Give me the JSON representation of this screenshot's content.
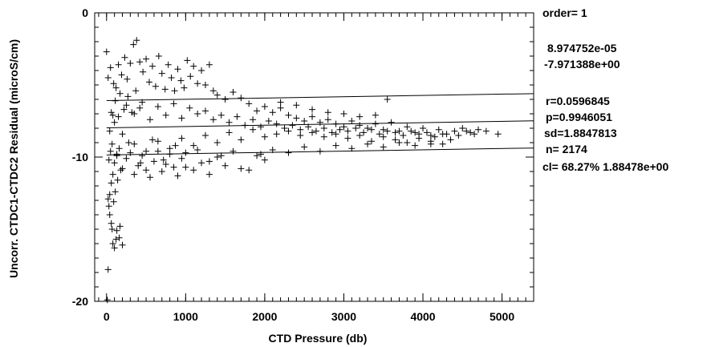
{
  "chart_data": {
    "type": "scatter",
    "title": "",
    "xlabel": "CTD Pressure (db)",
    "ylabel": "Uncorr. CTDC1-CTDC2 Residual (microS/cm)",
    "xlim": [
      -150,
      5400
    ],
    "ylim": [
      -20,
      0
    ],
    "x_ticks": [
      0,
      1000,
      2000,
      3000,
      4000,
      5000
    ],
    "y_ticks": [
      0,
      -10,
      -20
    ],
    "x_minor_step": 100,
    "y_minor_step": 1,
    "marker": "+",
    "grid": false,
    "fit": {
      "slope": 8.974752e-05,
      "intercept": -7.971388,
      "sd": 1.8847813,
      "confidence_band_offset": 1.88478
    },
    "points": [
      [
        0,
        -2.7
      ],
      [
        10,
        -19.9
      ],
      [
        20,
        -12.9
      ],
      [
        30,
        -13.4
      ],
      [
        40,
        -14.0
      ],
      [
        60,
        -14.6
      ],
      [
        70,
        -15.0
      ],
      [
        80,
        -16.0
      ],
      [
        100,
        -16.3
      ],
      [
        120,
        -15.7
      ],
      [
        130,
        -15.1
      ],
      [
        160,
        -15.6
      ],
      [
        170,
        -14.8
      ],
      [
        200,
        -16.1
      ],
      [
        20,
        -17.8
      ],
      [
        40,
        -12.6
      ],
      [
        60,
        -11.8
      ],
      [
        80,
        -11.2
      ],
      [
        90,
        -13.1
      ],
      [
        110,
        -12.4
      ],
      [
        140,
        -11.6
      ],
      [
        180,
        -10.9
      ],
      [
        30,
        -10.2
      ],
      [
        50,
        -9.6
      ],
      [
        70,
        -9.1
      ],
      [
        100,
        -10.4
      ],
      [
        130,
        -9.8
      ],
      [
        160,
        -9.4
      ],
      [
        200,
        -10.8
      ],
      [
        250,
        -10.1
      ],
      [
        300,
        -9.7
      ],
      [
        350,
        -11.2
      ],
      [
        400,
        -10.6
      ],
      [
        450,
        -9.9
      ],
      [
        500,
        -10.9
      ],
      [
        550,
        -11.4
      ],
      [
        600,
        -10.3
      ],
      [
        650,
        -9.6
      ],
      [
        700,
        -11.0
      ],
      [
        750,
        -10.5
      ],
      [
        800,
        -9.8
      ],
      [
        850,
        -10.7
      ],
      [
        900,
        -11.3
      ],
      [
        950,
        -10.1
      ],
      [
        1000,
        -9.7
      ],
      [
        1100,
        -10.9
      ],
      [
        1200,
        -10.4
      ],
      [
        1300,
        -11.2
      ],
      [
        1400,
        -10.0
      ],
      [
        1500,
        -10.6
      ],
      [
        1700,
        -10.8
      ],
      [
        1900,
        -9.9
      ],
      [
        2000,
        -10.2
      ],
      [
        20,
        -4.5
      ],
      [
        50,
        -3.8
      ],
      [
        90,
        -4.9
      ],
      [
        120,
        -5.2
      ],
      [
        150,
        -3.6
      ],
      [
        190,
        -4.3
      ],
      [
        230,
        -3.1
      ],
      [
        260,
        -4.6
      ],
      [
        300,
        -3.5
      ],
      [
        340,
        -2.2
      ],
      [
        380,
        -1.9
      ],
      [
        420,
        -3.4
      ],
      [
        460,
        -4.1
      ],
      [
        500,
        -3.2
      ],
      [
        540,
        -4.8
      ],
      [
        580,
        -3.7
      ],
      [
        620,
        -5.1
      ],
      [
        660,
        -3.0
      ],
      [
        700,
        -4.2
      ],
      [
        740,
        -5.3
      ],
      [
        780,
        -3.6
      ],
      [
        820,
        -4.5
      ],
      [
        860,
        -5.4
      ],
      [
        900,
        -3.9
      ],
      [
        940,
        -4.7
      ],
      [
        980,
        -5.2
      ],
      [
        1020,
        -3.3
      ],
      [
        1060,
        -4.4
      ],
      [
        1100,
        -3.7
      ],
      [
        1150,
        -4.9
      ],
      [
        1200,
        -4.0
      ],
      [
        1250,
        -5.0
      ],
      [
        1300,
        -3.6
      ],
      [
        1350,
        -5.4
      ],
      [
        1400,
        -5.7
      ],
      [
        1500,
        -6.0
      ],
      [
        1600,
        -5.5
      ],
      [
        1700,
        -5.9
      ],
      [
        1800,
        -6.3
      ],
      [
        1900,
        -6.8
      ],
      [
        2000,
        -6.5
      ],
      [
        2100,
        -6.9
      ],
      [
        2200,
        -6.6
      ],
      [
        2300,
        -7.1
      ],
      [
        2400,
        -7.3
      ],
      [
        2500,
        -7.5
      ],
      [
        2600,
        -7.2
      ],
      [
        2700,
        -7.6
      ],
      [
        2800,
        -7.4
      ],
      [
        2900,
        -7.7
      ],
      [
        3000,
        -7.9
      ],
      [
        3100,
        -7.5
      ],
      [
        3200,
        -7.8
      ],
      [
        3300,
        -8.0
      ],
      [
        3400,
        -7.7
      ],
      [
        3500,
        -8.1
      ],
      [
        3550,
        -6.0
      ],
      [
        3600,
        -7.6
      ],
      [
        3700,
        -8.2
      ],
      [
        3800,
        -7.9
      ],
      [
        3900,
        -8.3
      ],
      [
        4000,
        -8.0
      ],
      [
        4100,
        -8.5
      ],
      [
        4200,
        -8.1
      ],
      [
        4300,
        -8.4
      ],
      [
        4400,
        -8.2
      ],
      [
        4500,
        -8.0
      ],
      [
        4600,
        -8.3
      ],
      [
        4700,
        -8.1
      ],
      [
        4800,
        -8.2
      ],
      [
        4950,
        -8.4
      ],
      [
        4350,
        -8.8
      ],
      [
        4250,
        -9.1
      ],
      [
        4100,
        -8.9
      ],
      [
        3950,
        -8.7
      ],
      [
        3800,
        -9.0
      ],
      [
        3650,
        -8.8
      ],
      [
        3500,
        -8.6
      ],
      [
        3350,
        -8.9
      ],
      [
        3200,
        -8.5
      ],
      [
        3050,
        -8.7
      ],
      [
        2900,
        -8.4
      ],
      [
        2750,
        -8.6
      ],
      [
        2600,
        -8.3
      ],
      [
        2450,
        -8.5
      ],
      [
        2300,
        -8.2
      ],
      [
        2150,
        -8.4
      ],
      [
        2000,
        -8.6
      ],
      [
        1850,
        -8.1
      ],
      [
        1700,
        -8.8
      ],
      [
        1550,
        -8.3
      ],
      [
        1400,
        -9.0
      ],
      [
        1250,
        -8.5
      ],
      [
        1100,
        -9.2
      ],
      [
        950,
        -8.7
      ],
      [
        800,
        -9.4
      ],
      [
        650,
        -8.9
      ],
      [
        500,
        -9.6
      ],
      [
        350,
        -9.1
      ],
      [
        200,
        -8.4
      ],
      [
        100,
        -7.6
      ],
      [
        60,
        -6.9
      ],
      [
        150,
        -7.2
      ],
      [
        250,
        -6.4
      ],
      [
        350,
        -7.0
      ],
      [
        450,
        -6.2
      ],
      [
        550,
        -7.4
      ],
      [
        650,
        -6.5
      ],
      [
        750,
        -7.1
      ],
      [
        850,
        -6.3
      ],
      [
        950,
        -7.3
      ],
      [
        1050,
        -6.6
      ],
      [
        1150,
        -7.0
      ],
      [
        1250,
        -6.8
      ],
      [
        1350,
        -7.4
      ],
      [
        1450,
        -7.1
      ],
      [
        1550,
        -7.6
      ],
      [
        1650,
        -7.2
      ],
      [
        1750,
        -7.8
      ],
      [
        1850,
        -7.4
      ],
      [
        1950,
        -7.9
      ],
      [
        2050,
        -7.5
      ],
      [
        2150,
        -7.7
      ],
      [
        2250,
        -8.0
      ],
      [
        2350,
        -7.8
      ],
      [
        2450,
        -8.1
      ],
      [
        2550,
        -7.9
      ],
      [
        2650,
        -8.2
      ],
      [
        2750,
        -8.0
      ],
      [
        2850,
        -8.3
      ],
      [
        2950,
        -8.1
      ],
      [
        3050,
        -8.2
      ],
      [
        3150,
        -8.0
      ],
      [
        3250,
        -8.3
      ],
      [
        3350,
        -8.1
      ],
      [
        3450,
        -8.4
      ],
      [
        3550,
        -8.2
      ],
      [
        3650,
        -8.3
      ],
      [
        3750,
        -8.5
      ],
      [
        3850,
        -8.2
      ],
      [
        3950,
        -8.4
      ],
      [
        4050,
        -8.3
      ],
      [
        4150,
        -8.6
      ],
      [
        4250,
        -8.4
      ],
      [
        4450,
        -8.5
      ],
      [
        4550,
        -8.2
      ],
      [
        4650,
        -8.4
      ],
      [
        1800,
        -10.9
      ],
      [
        1950,
        -9.8
      ],
      [
        2100,
        -9.5
      ],
      [
        2300,
        -9.7
      ],
      [
        2500,
        -9.3
      ],
      [
        2700,
        -9.6
      ],
      [
        2900,
        -9.2
      ],
      [
        3100,
        -9.4
      ],
      [
        3300,
        -9.1
      ],
      [
        3500,
        -9.3
      ],
      [
        3700,
        -9.0
      ],
      [
        3900,
        -9.2
      ],
      [
        4100,
        -9.1
      ],
      [
        2200,
        -6.2
      ],
      [
        2400,
        -6.4
      ],
      [
        2600,
        -6.7
      ],
      [
        2800,
        -6.9
      ],
      [
        3000,
        -7.0
      ],
      [
        3200,
        -7.2
      ],
      [
        3400,
        -7.1
      ],
      [
        1600,
        -9.6
      ],
      [
        1450,
        -9.9
      ],
      [
        1300,
        -10.3
      ],
      [
        1150,
        -9.5
      ],
      [
        1000,
        -10.7
      ],
      [
        870,
        -9.2
      ],
      [
        720,
        -10.2
      ],
      [
        580,
        -8.8
      ],
      [
        430,
        -10.4
      ],
      [
        280,
        -9.0
      ],
      [
        130,
        -9.9
      ],
      [
        40,
        -8.2
      ],
      [
        80,
        -7.1
      ],
      [
        110,
        -6.1
      ],
      [
        170,
        -5.6
      ],
      [
        220,
        -6.7
      ],
      [
        270,
        -5.8
      ],
      [
        320,
        -6.9
      ],
      [
        370,
        -5.4
      ],
      [
        420,
        -6.6
      ]
    ]
  },
  "stats_panel": {
    "order": "order= 1",
    "coef1": "8.974752e-05",
    "coef2": "-7.971388e+00",
    "r": "r=0.0596845",
    "p": "p=0.9946051",
    "sd": "sd=1.8847813",
    "n": "n= 2174",
    "cl": "cl=  68.27%  1.88478e+00"
  },
  "colors": {
    "ink": "#000000",
    "background": "#ffffff"
  }
}
